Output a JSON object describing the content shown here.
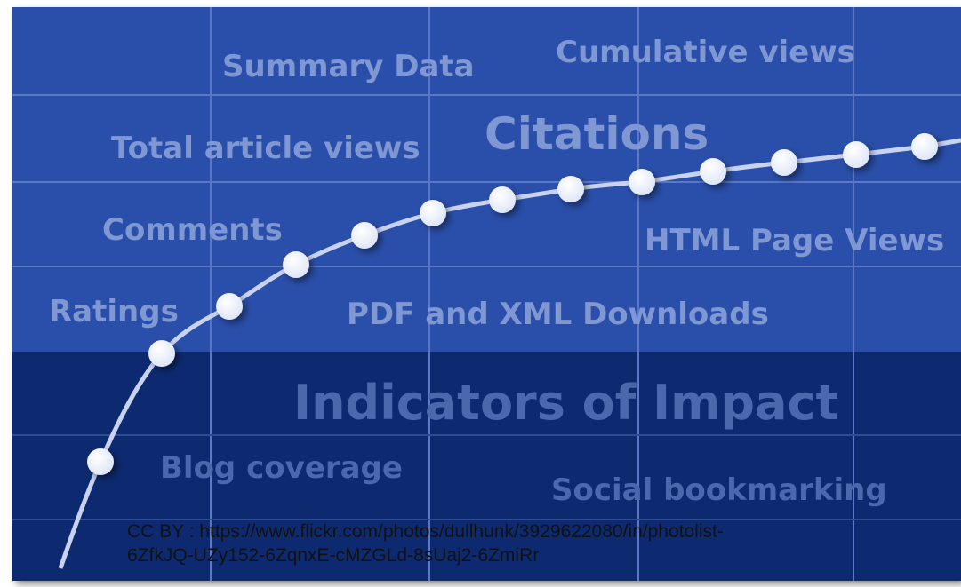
{
  "image": {
    "labels": [
      "Summary Data",
      "Cumulative views",
      "Total article views",
      "Citations",
      "Comments",
      "HTML Page Views",
      "Ratings",
      "PDF and XML Downloads",
      "Blog coverage",
      "Social bookmarking"
    ],
    "title": "Indicators of Impact"
  },
  "caption": [
    "CC BY : https://www.flickr.com/photos/dullhunk/3929622080/in/photolist-",
    "6ZfkJQ-UZy152-6ZqnxE-cMZGLd-8sUaj2-6ZmiRr"
  ]
}
